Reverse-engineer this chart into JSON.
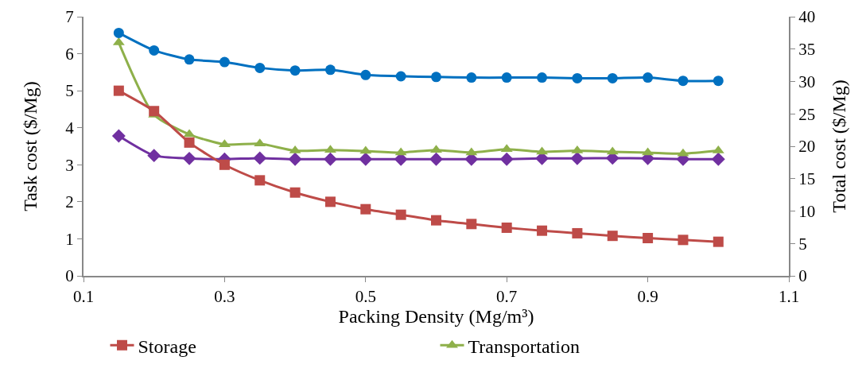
{
  "chart_data": {
    "type": "line",
    "xlabel": "Packing Density (Mg/m³)",
    "ylabel": "Task cost ($/Mg)",
    "y2label": "Total cost ($/Mg)",
    "x": [
      0.15,
      0.2,
      0.25,
      0.3,
      0.35,
      0.4,
      0.45,
      0.5,
      0.55,
      0.6,
      0.65,
      0.7,
      0.75,
      0.8,
      0.85,
      0.9,
      0.95,
      1.0
    ],
    "series": [
      {
        "name": "Storage",
        "color": "#be4b48",
        "marker": "square",
        "values": [
          5.0,
          4.45,
          3.6,
          3.0,
          2.58,
          2.25,
          2.0,
          1.8,
          1.65,
          1.5,
          1.4,
          1.3,
          1.22,
          1.15,
          1.08,
          1.02,
          0.97,
          0.92
        ]
      },
      {
        "name": "Transportation",
        "color": "#8eb04a",
        "marker": "triangle",
        "values": [
          6.3,
          4.35,
          3.82,
          3.55,
          3.57,
          3.38,
          3.4,
          3.37,
          3.33,
          3.4,
          3.33,
          3.42,
          3.35,
          3.38,
          3.35,
          3.33,
          3.3,
          3.38
        ]
      },
      {
        "color": "#7030a0",
        "marker": "diamond",
        "values": [
          3.78,
          3.25,
          3.17,
          3.15,
          3.18,
          3.15,
          3.15,
          3.15,
          3.15,
          3.15,
          3.15,
          3.15,
          3.17,
          3.17,
          3.18,
          3.17,
          3.15,
          3.15
        ]
      },
      {
        "color": "#0070c0",
        "marker": "circle",
        "axis": "y2",
        "values": [
          37.5,
          34.8,
          33.4,
          33.0,
          32.1,
          31.7,
          31.8,
          31.0,
          30.8,
          30.7,
          30.6,
          30.6,
          30.6,
          30.5,
          30.5,
          30.6,
          30.1,
          30.1
        ]
      }
    ],
    "xlim": [
      0.1,
      1.1
    ],
    "xticks": [
      0.1,
      0.3,
      0.5,
      0.7,
      0.9,
      1.1
    ],
    "ylim": [
      0,
      7
    ],
    "yticks": [
      0,
      1,
      2,
      3,
      4,
      5,
      6,
      7
    ],
    "y2lim": [
      0,
      40
    ],
    "y2ticks": [
      0,
      5,
      10,
      15,
      20,
      25,
      30,
      35,
      40
    ],
    "grid": false,
    "legend": "bottom",
    "line_style": "solid"
  }
}
